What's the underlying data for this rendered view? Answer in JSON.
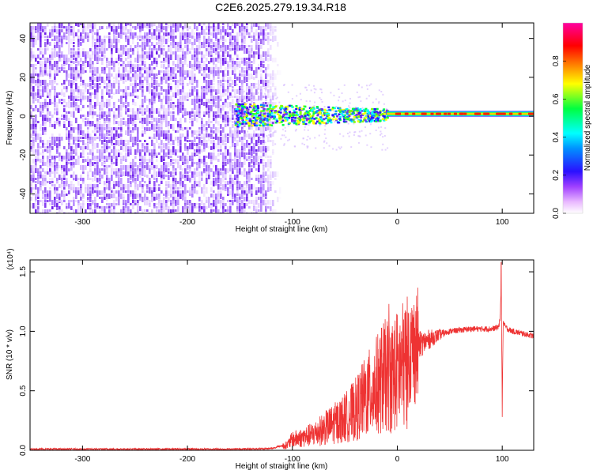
{
  "figure": {
    "title": "C2E6.2025.279.19.34.R18"
  },
  "chart_data": [
    {
      "type": "heatmap",
      "xlabel": "Height of straight line (km)",
      "ylabel": "Frequency (Hz)",
      "xlim": [
        -350,
        130
      ],
      "ylim": [
        -50,
        48
      ],
      "x_ticks": [
        "-300",
        "-200",
        "-100",
        "0",
        "100"
      ],
      "y_ticks": [
        "-40",
        "-20",
        "0",
        "20",
        "40"
      ],
      "colorbar": {
        "label": "Normalized spectral amplitude",
        "range": [
          0.0,
          1.0
        ],
        "ticks": [
          "0.0",
          "0.2",
          "0.4",
          "0.6",
          "0.8"
        ],
        "colormap": [
          "#ffffff",
          "#ff00ff",
          "#0000ff",
          "#00ffff",
          "#00ff00",
          "#ffff00",
          "#ff0000",
          "#ff00ff"
        ]
      },
      "regions": [
        {
          "x": [
            -350,
            -125
          ],
          "freq": [
            -50,
            48
          ],
          "amplitude": 0.12,
          "description_key": "noise"
        },
        {
          "x": [
            -155,
            -10
          ],
          "freq": [
            -6,
            7
          ],
          "amplitude": 0.45
        },
        {
          "x": [
            -10,
            130
          ],
          "freq": [
            -2,
            3
          ],
          "amplitude": 0.9
        }
      ],
      "grid": false
    },
    {
      "type": "line",
      "xlabel": "Height of straight line (km)",
      "ylabel": "SNR (10 * v/v)",
      "y_multiplier": "(x10⁴)",
      "xlim": [
        -350,
        130
      ],
      "ylim": [
        0,
        1.6
      ],
      "x_ticks": [
        "-300",
        "-200",
        "-100",
        "0",
        "100"
      ],
      "y_ticks": [
        "0.0",
        "0.5",
        "1.0",
        "1.5"
      ],
      "color": "#ee3333",
      "series": [
        {
          "x": [
            -350,
            -300,
            -250,
            -200,
            -150,
            -120,
            -105,
            -100,
            -90,
            -80,
            -70,
            -60,
            -50,
            -40,
            -30,
            -20,
            -15,
            -10,
            -5,
            0,
            10,
            20,
            30,
            40,
            50,
            60,
            70,
            80,
            90,
            95,
            97,
            98,
            99,
            100,
            101,
            102,
            105,
            110,
            115,
            120,
            125,
            130
          ],
          "values": [
            0.01,
            0.01,
            0.01,
            0.01,
            0.01,
            0.015,
            0.05,
            0.1,
            0.12,
            0.15,
            0.2,
            0.25,
            0.3,
            0.38,
            0.5,
            0.6,
            0.67,
            0.7,
            0.7,
            0.74,
            0.82,
            0.88,
            0.93,
            0.97,
            1.0,
            1.01,
            1.02,
            1.02,
            1.02,
            1.03,
            1.05,
            1.1,
            1.4,
            0.4,
            1.1,
            1.05,
            1.02,
            1.0,
            0.99,
            0.98,
            0.97,
            0.96
          ]
        }
      ],
      "spikes": [
        {
          "x": -8,
          "value": 1.23
        },
        {
          "x": 99,
          "value": 1.58
        },
        {
          "x": 100,
          "value": 0.28
        }
      ],
      "grid": false
    }
  ]
}
